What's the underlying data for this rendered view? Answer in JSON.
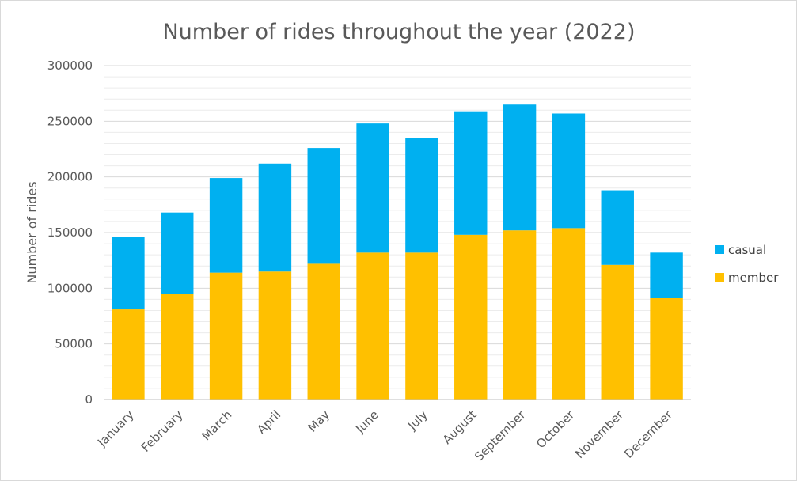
{
  "chart_data": {
    "type": "bar",
    "stacked": true,
    "title": "Number of rides throughout the year (2022)",
    "xlabel": "",
    "ylabel": "Number of rides",
    "ylim": [
      0,
      300000
    ],
    "yticks": [
      "0",
      "50000",
      "100000",
      "150000",
      "200000",
      "250000",
      "300000"
    ],
    "ytick_values": [
      0,
      50000,
      100000,
      150000,
      200000,
      250000,
      300000
    ],
    "grid": true,
    "legend_position": "right",
    "categories": [
      "January",
      "February",
      "March",
      "April",
      "May",
      "June",
      "July",
      "August",
      "September",
      "October",
      "November",
      "December"
    ],
    "series": [
      {
        "name": "member",
        "color": "#FFC000",
        "values": [
          81000,
          95000,
          114000,
          115000,
          122000,
          132000,
          132000,
          148000,
          152000,
          154000,
          121000,
          91000
        ]
      },
      {
        "name": "casual",
        "color": "#00B0F0",
        "values": [
          65000,
          73000,
          85000,
          97000,
          104000,
          116000,
          103000,
          111000,
          113000,
          103000,
          67000,
          41000
        ]
      }
    ],
    "legend_order": [
      "casual",
      "member"
    ],
    "gridline_color": "#d9d9d9",
    "axis_color": "#bfbfbf"
  }
}
